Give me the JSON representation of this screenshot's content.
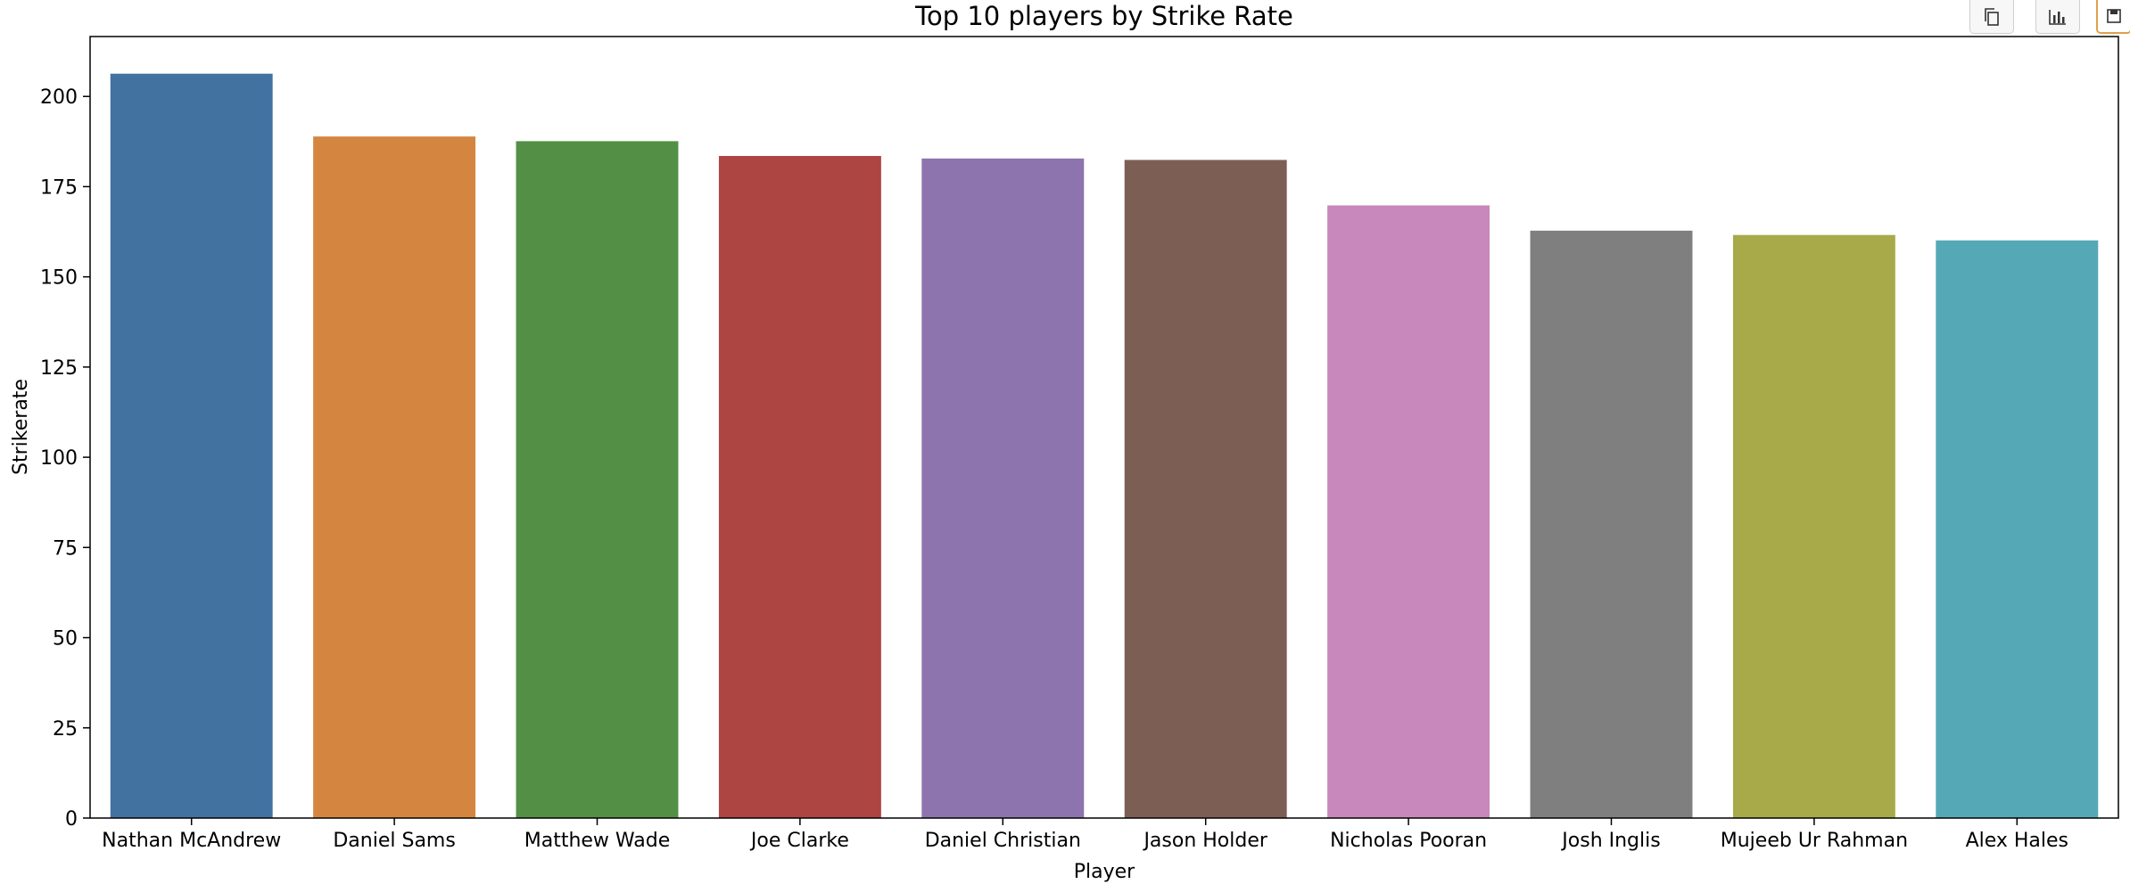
{
  "toolbar": {
    "buttons": [
      {
        "icon": "copy-icon"
      },
      {
        "icon": "bar-chart-icon"
      },
      {
        "icon": "save-icon"
      }
    ]
  },
  "chart_data": {
    "type": "bar",
    "title": "Top 10 players by Strike Rate",
    "xlabel": "Player",
    "ylabel": "Strikerate",
    "categories": [
      "Nathan McAndrew",
      "Daniel Sams",
      "Matthew Wade",
      "Joe Clarke",
      "Daniel Christian",
      "Jason Holder",
      "Nicholas Pooran",
      "Josh Inglis",
      "Mujeeb Ur Rahman",
      "Alex Hales"
    ],
    "values": [
      206.3,
      188.9,
      187.6,
      183.5,
      182.8,
      182.4,
      169.8,
      162.8,
      161.6,
      160.1
    ],
    "colors": [
      "#4272a0",
      "#d48640",
      "#539045",
      "#ad4543",
      "#8e74ae",
      "#7d5e55",
      "#c888bc",
      "#7f7f7f",
      "#a8aa4a",
      "#55a8b6"
    ],
    "yticks": [
      0,
      25,
      50,
      75,
      100,
      125,
      150,
      175,
      200
    ],
    "ylim": [
      0,
      216.6
    ],
    "grid": false,
    "legend": false
  }
}
